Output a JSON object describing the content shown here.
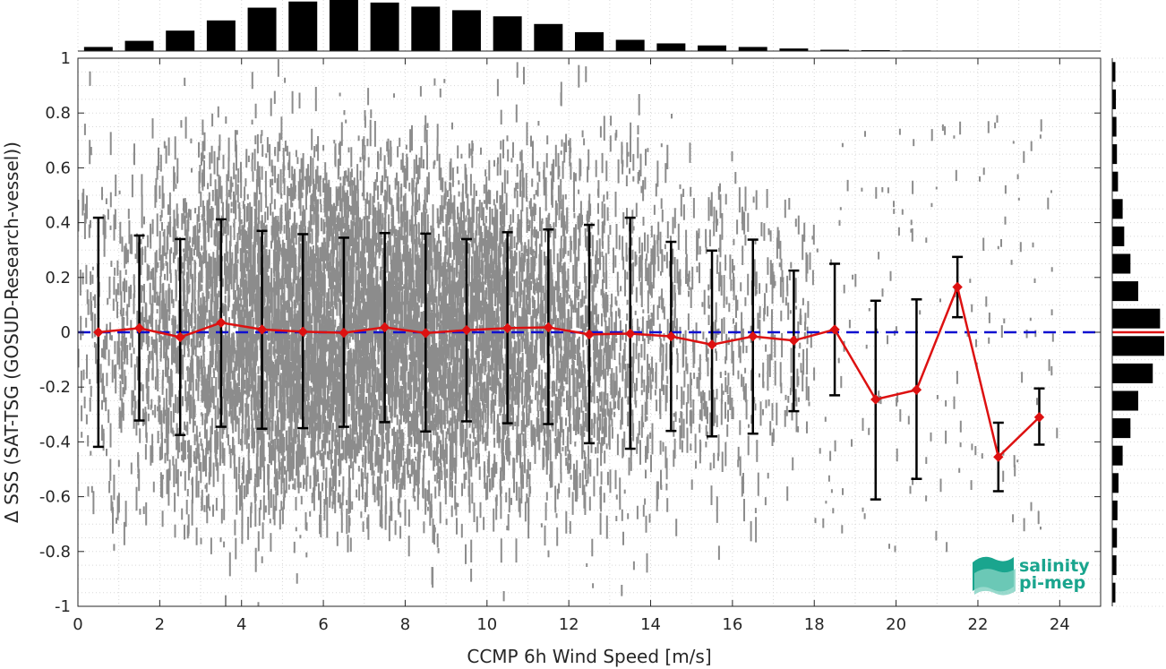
{
  "chart_data": {
    "type": "scatter",
    "xlabel": "CCMP 6h Wind Speed [m/s]",
    "ylabel": "Δ SSS (SAT-TSG (GOSUD-Research-vessel))",
    "xlim": [
      0,
      25
    ],
    "ylim": [
      -1,
      1
    ],
    "x_ticks": [
      "0",
      "2",
      "4",
      "6",
      "8",
      "10",
      "12",
      "14",
      "16",
      "18",
      "20",
      "22",
      "24"
    ],
    "y_ticks": [
      "1",
      "0.8",
      "0.6",
      "0.4",
      "0.2",
      "0",
      "-0.2",
      "-0.4",
      "-0.6",
      "-0.8",
      "-1"
    ],
    "grid": true,
    "reference_line": {
      "y": 0,
      "style": "dashed",
      "color": "#1010d0"
    },
    "binned_mean": {
      "color": "#dd1111",
      "x": [
        0.5,
        1.5,
        2.5,
        3.5,
        4.5,
        5.5,
        6.5,
        7.5,
        8.5,
        9.5,
        10.5,
        11.5,
        12.5,
        13.5,
        14.5,
        15.5,
        16.5,
        17.5,
        18.5,
        19.5,
        20.5,
        21.5,
        22.5,
        23.5
      ],
      "mean": [
        0.0,
        0.015,
        -0.018,
        0.035,
        0.01,
        0.002,
        -0.002,
        0.018,
        -0.003,
        0.008,
        0.015,
        0.018,
        -0.008,
        -0.005,
        -0.015,
        -0.045,
        -0.015,
        -0.03,
        0.01,
        -0.245,
        -0.21,
        0.165,
        -0.455,
        -0.31
      ],
      "std_upper": [
        0.418,
        0.353,
        0.34,
        0.412,
        0.37,
        0.358,
        0.345,
        0.362,
        0.36,
        0.34,
        0.365,
        0.375,
        0.392,
        0.418,
        0.33,
        0.298,
        0.338,
        0.225,
        0.25,
        0.115,
        0.12,
        0.275,
        -0.33,
        -0.205
      ],
      "std_lower": [
        -0.418,
        -0.322,
        -0.375,
        -0.345,
        -0.352,
        -0.35,
        -0.345,
        -0.328,
        -0.362,
        -0.325,
        -0.332,
        -0.335,
        -0.405,
        -0.425,
        -0.36,
        -0.38,
        -0.37,
        -0.288,
        -0.23,
        -0.61,
        -0.535,
        0.055,
        -0.58,
        -0.41
      ]
    },
    "x_histogram": {
      "bins": [
        0.5,
        1.5,
        2.5,
        3.5,
        4.5,
        5.5,
        6.5,
        7.5,
        8.5,
        9.5,
        10.5,
        11.5,
        12.5,
        13.5,
        14.5,
        15.5,
        16.5,
        17.5,
        18.5,
        19.5,
        20.5,
        21.5,
        22.5,
        23.5
      ],
      "values": [
        0.08,
        0.2,
        0.4,
        0.6,
        0.85,
        0.97,
        1.0,
        0.95,
        0.87,
        0.8,
        0.68,
        0.53,
        0.37,
        0.22,
        0.15,
        0.11,
        0.08,
        0.05,
        0.025,
        0.018,
        0.012,
        0.008,
        0.005,
        0.003
      ]
    },
    "y_histogram": {
      "bins": [
        0.95,
        0.85,
        0.75,
        0.65,
        0.55,
        0.45,
        0.35,
        0.25,
        0.15,
        0.05,
        -0.05,
        -0.15,
        -0.25,
        -0.35,
        -0.45,
        -0.55,
        -0.65,
        -0.75,
        -0.85,
        -0.95
      ],
      "values": [
        0.06,
        0.07,
        0.08,
        0.09,
        0.11,
        0.2,
        0.23,
        0.35,
        0.5,
        0.92,
        1.0,
        0.78,
        0.5,
        0.35,
        0.2,
        0.12,
        0.1,
        0.09,
        0.08,
        0.06
      ],
      "median_line_y": 0
    }
  },
  "logo": {
    "line1": "salinity",
    "line2": "pi-mep",
    "color": "#1aa58e"
  }
}
